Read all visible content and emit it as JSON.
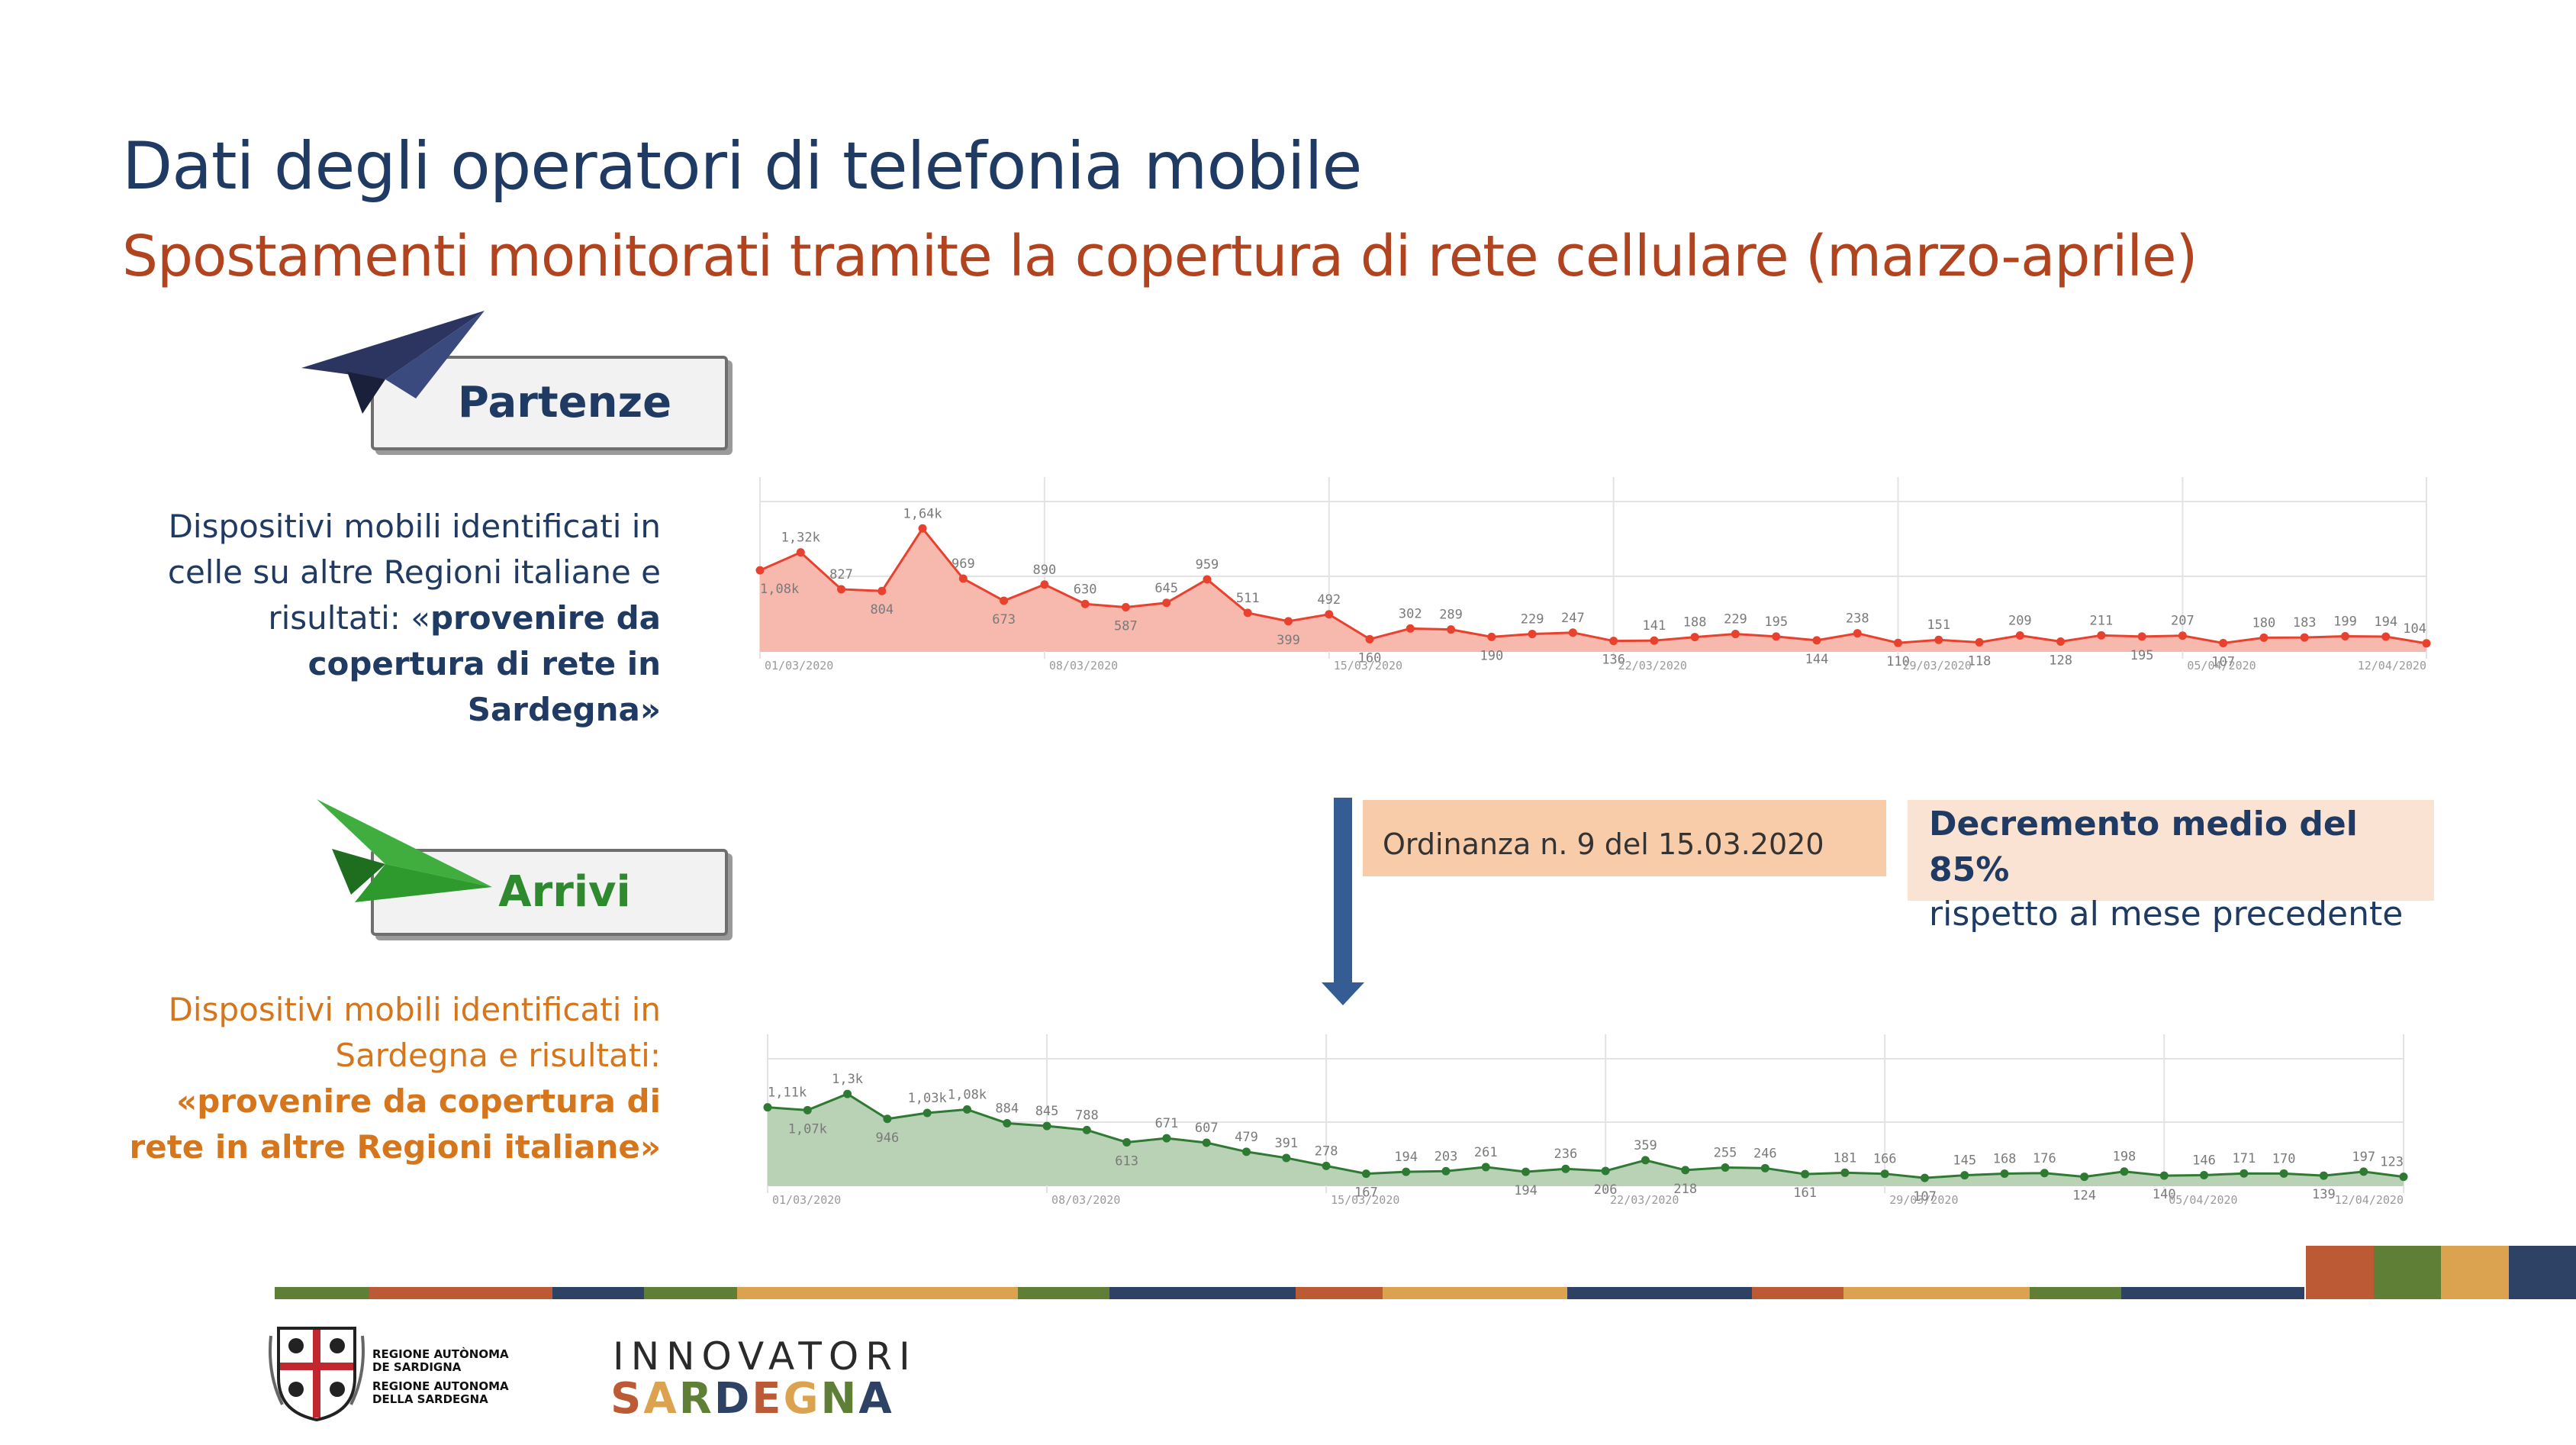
{
  "header": {
    "title": "Dati degli operatori di telefonia mobile",
    "subtitle": "Spostamenti monitorati tramite la copertura di rete cellulare (marzo-aprile)"
  },
  "partenze": {
    "label": "Partenze",
    "desc_lines": [
      "Dispositivi mobili identificati in",
      "celle su altre Regioni italiane e"
    ],
    "desc_line3_plain": "risultati: «",
    "desc_line3_bold": "provenire da",
    "desc_bold_lines": [
      "copertura di rete in",
      "Sardegna»"
    ]
  },
  "arrivi": {
    "label": "Arrivi",
    "desc_lines": [
      "Dispositivi mobili identificati in",
      "Sardegna e risultati:"
    ],
    "desc_bold_lines": [
      "«provenire da copertura di",
      "rete in altre Regioni italiane»"
    ]
  },
  "notes": {
    "ordinanza": "Ordinanza n. 9 del 15.03.2020",
    "decremento_bold": "Decremento medio del 85%",
    "decremento_plain": "rispetto al mese precedente"
  },
  "logos": {
    "ras_line1": "REGIONE AUTÒNOMA",
    "ras_line2": "DE SARDIGNA",
    "ras_line3": "REGIONE AUTONOMA",
    "ras_line4": "DELLA SARDEGNA",
    "innovatori": "INNOVATORI",
    "sardegna": "SARDEGNA"
  },
  "colors": {
    "title": "#1f3a63",
    "subtitle": "#b1441f",
    "partenze_line": "#e8422e",
    "partenze_fill": "#f7b8ad",
    "arrivi_line": "#2f7a32",
    "arrivi_fill": "#b9d1b5",
    "arrow": "#355d94"
  },
  "chart_data": [
    {
      "type": "area",
      "x_ticks": [
        "01/03/2020",
        "08/03/2020",
        "15/03/2020",
        "22/03/2020",
        "29/03/2020",
        "05/04/2020",
        "12/04/2020"
      ],
      "values": [
        1080,
        1320,
        827,
        804,
        1640,
        969,
        673,
        890,
        630,
        587,
        645,
        959,
        511,
        399,
        492,
        160,
        302,
        289,
        190,
        229,
        247,
        136,
        141,
        188,
        229,
        195,
        144,
        238,
        110,
        151,
        118,
        209,
        128,
        211,
        195,
        207,
        107,
        180,
        183,
        199,
        194,
        104
      ],
      "labels": [
        "1,08k",
        "1,32k",
        "827",
        "804",
        "1,64k",
        "969",
        "673",
        "890",
        "630",
        "587",
        "645",
        "959",
        "511",
        "399",
        "492",
        "160",
        "302",
        "289",
        "190",
        "229",
        "247",
        "136",
        "141",
        "188",
        "229",
        "195",
        "144",
        "238",
        "110",
        "151",
        "118",
        "209",
        "128",
        "211",
        "195",
        "207",
        "107",
        "180",
        "183",
        "199",
        "194",
        "104"
      ],
      "ylim": [
        0,
        2000
      ]
    },
    {
      "type": "area",
      "x_ticks": [
        "01/03/2020",
        "08/03/2020",
        "15/03/2020",
        "22/03/2020",
        "29/03/2020",
        "05/04/2020",
        "12/04/2020"
      ],
      "values": [
        1110,
        1070,
        1300,
        946,
        1030,
        1080,
        884,
        845,
        788,
        613,
        671,
        607,
        479,
        391,
        278,
        167,
        194,
        203,
        261,
        194,
        236,
        206,
        359,
        218,
        255,
        246,
        161,
        181,
        166,
        107,
        145,
        168,
        176,
        124,
        198,
        140,
        146,
        171,
        170,
        139,
        197,
        123
      ],
      "labels": [
        "1,11k",
        "1,07k",
        "1,3k",
        "946",
        "1,03k",
        "1,08k",
        "884",
        "845",
        "788",
        "613",
        "671",
        "607",
        "479",
        "391",
        "278",
        "167",
        "194",
        "203",
        "261",
        "194",
        "236",
        "206",
        "359",
        "218",
        "255",
        "246",
        "161",
        "181",
        "166",
        "107",
        "145",
        "168",
        "176",
        "124",
        "198",
        "140",
        "146",
        "171",
        "170",
        "139",
        "197",
        "123"
      ],
      "ylim": [
        0,
        1800
      ]
    }
  ]
}
